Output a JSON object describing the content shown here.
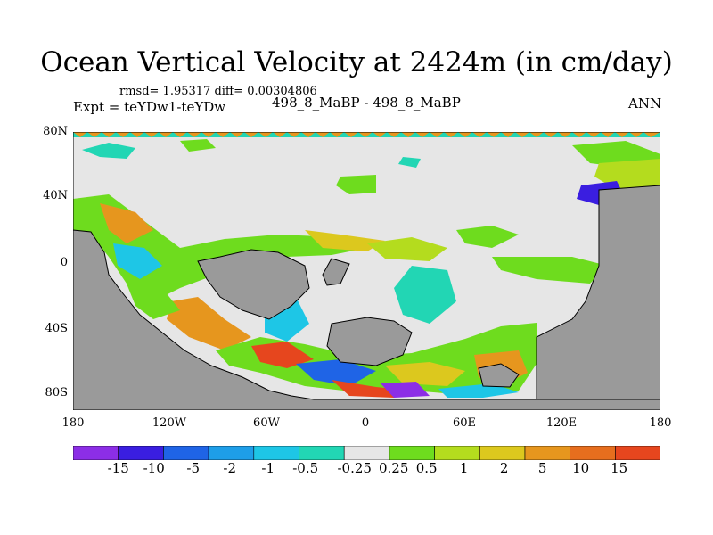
{
  "title": "Ocean Vertical Velocity at 2424m (in cm/day)",
  "stats_line": "rmsd= 1.95317 diff= 0.00304806",
  "experiment_line": "Expt = teYDw1-teYDw",
  "runs_line": "498_8_MaBP - 498_8_MaBP",
  "season": "ANN",
  "lat_labels": [
    "80N",
    "40N",
    "0",
    "40S",
    "80S"
  ],
  "lon_labels": [
    "180",
    "120W",
    "60W",
    "0",
    "60E",
    "120E",
    "180"
  ],
  "colorbar": {
    "colors": [
      "#8c2ee6",
      "#3a1ee0",
      "#1f64e6",
      "#1e9ee8",
      "#1ec6e6",
      "#22d6b4",
      "#e6e6e6",
      "#6edc1e",
      "#b4dc1e",
      "#dcc81e",
      "#e6961e",
      "#e66e1e",
      "#e6461e"
    ],
    "labels": [
      "-15",
      "-10",
      "-5",
      "-2",
      "-1",
      "-0.5",
      "-0.25",
      "0.25",
      "0.5",
      "1",
      "2",
      "5",
      "10",
      "15"
    ]
  },
  "colors": {
    "land": "#9a9a9a",
    "near_zero": "#e6e6e6",
    "coast_line": "#000000"
  }
}
